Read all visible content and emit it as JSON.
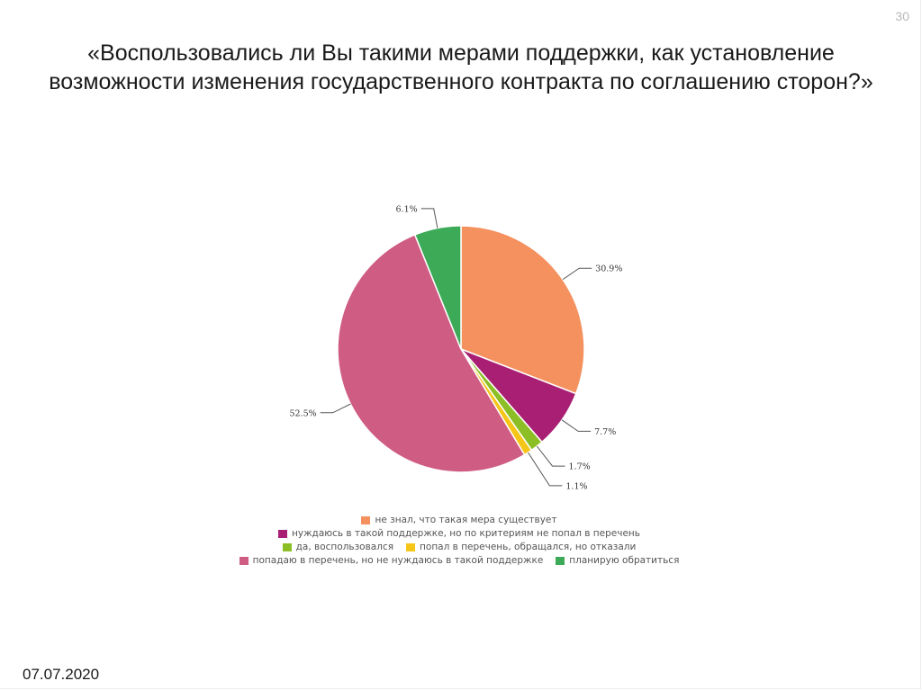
{
  "slide": {
    "page_number": "30",
    "title": "«Воспользовались ли Вы такими мерами поддержки, как установление возможности изменения государственного контракта по соглашению сторон?»",
    "date": "07.07.2020"
  },
  "chart_data": {
    "type": "pie",
    "slices": [
      {
        "name": "не знал, что такая мера существует",
        "value": 30.9,
        "label": "30.9%",
        "color": "#f4915e"
      },
      {
        "name": "нуждаюсь в такой поддержке, но по критериям не попал в перечень",
        "value": 7.7,
        "label": "7.7%",
        "color": "#a81f73"
      },
      {
        "name": "да, воспользовался",
        "value": 1.7,
        "label": "1.7%",
        "color": "#8cbf26"
      },
      {
        "name": "попал в перечень, обращался, но отказали",
        "value": 1.1,
        "label": "1.1%",
        "color": "#f5c518"
      },
      {
        "name": "попадаю в перечень, но не нуждаюсь в такой поддержке",
        "value": 52.5,
        "label": "52.5%",
        "color": "#cf5c82"
      },
      {
        "name": "планирую обратиться",
        "value": 6.1,
        "label": "6.1%",
        "color": "#3caa57"
      }
    ],
    "legend_position": "bottom",
    "start_angle": "12 o'clock",
    "direction": "clockwise"
  }
}
